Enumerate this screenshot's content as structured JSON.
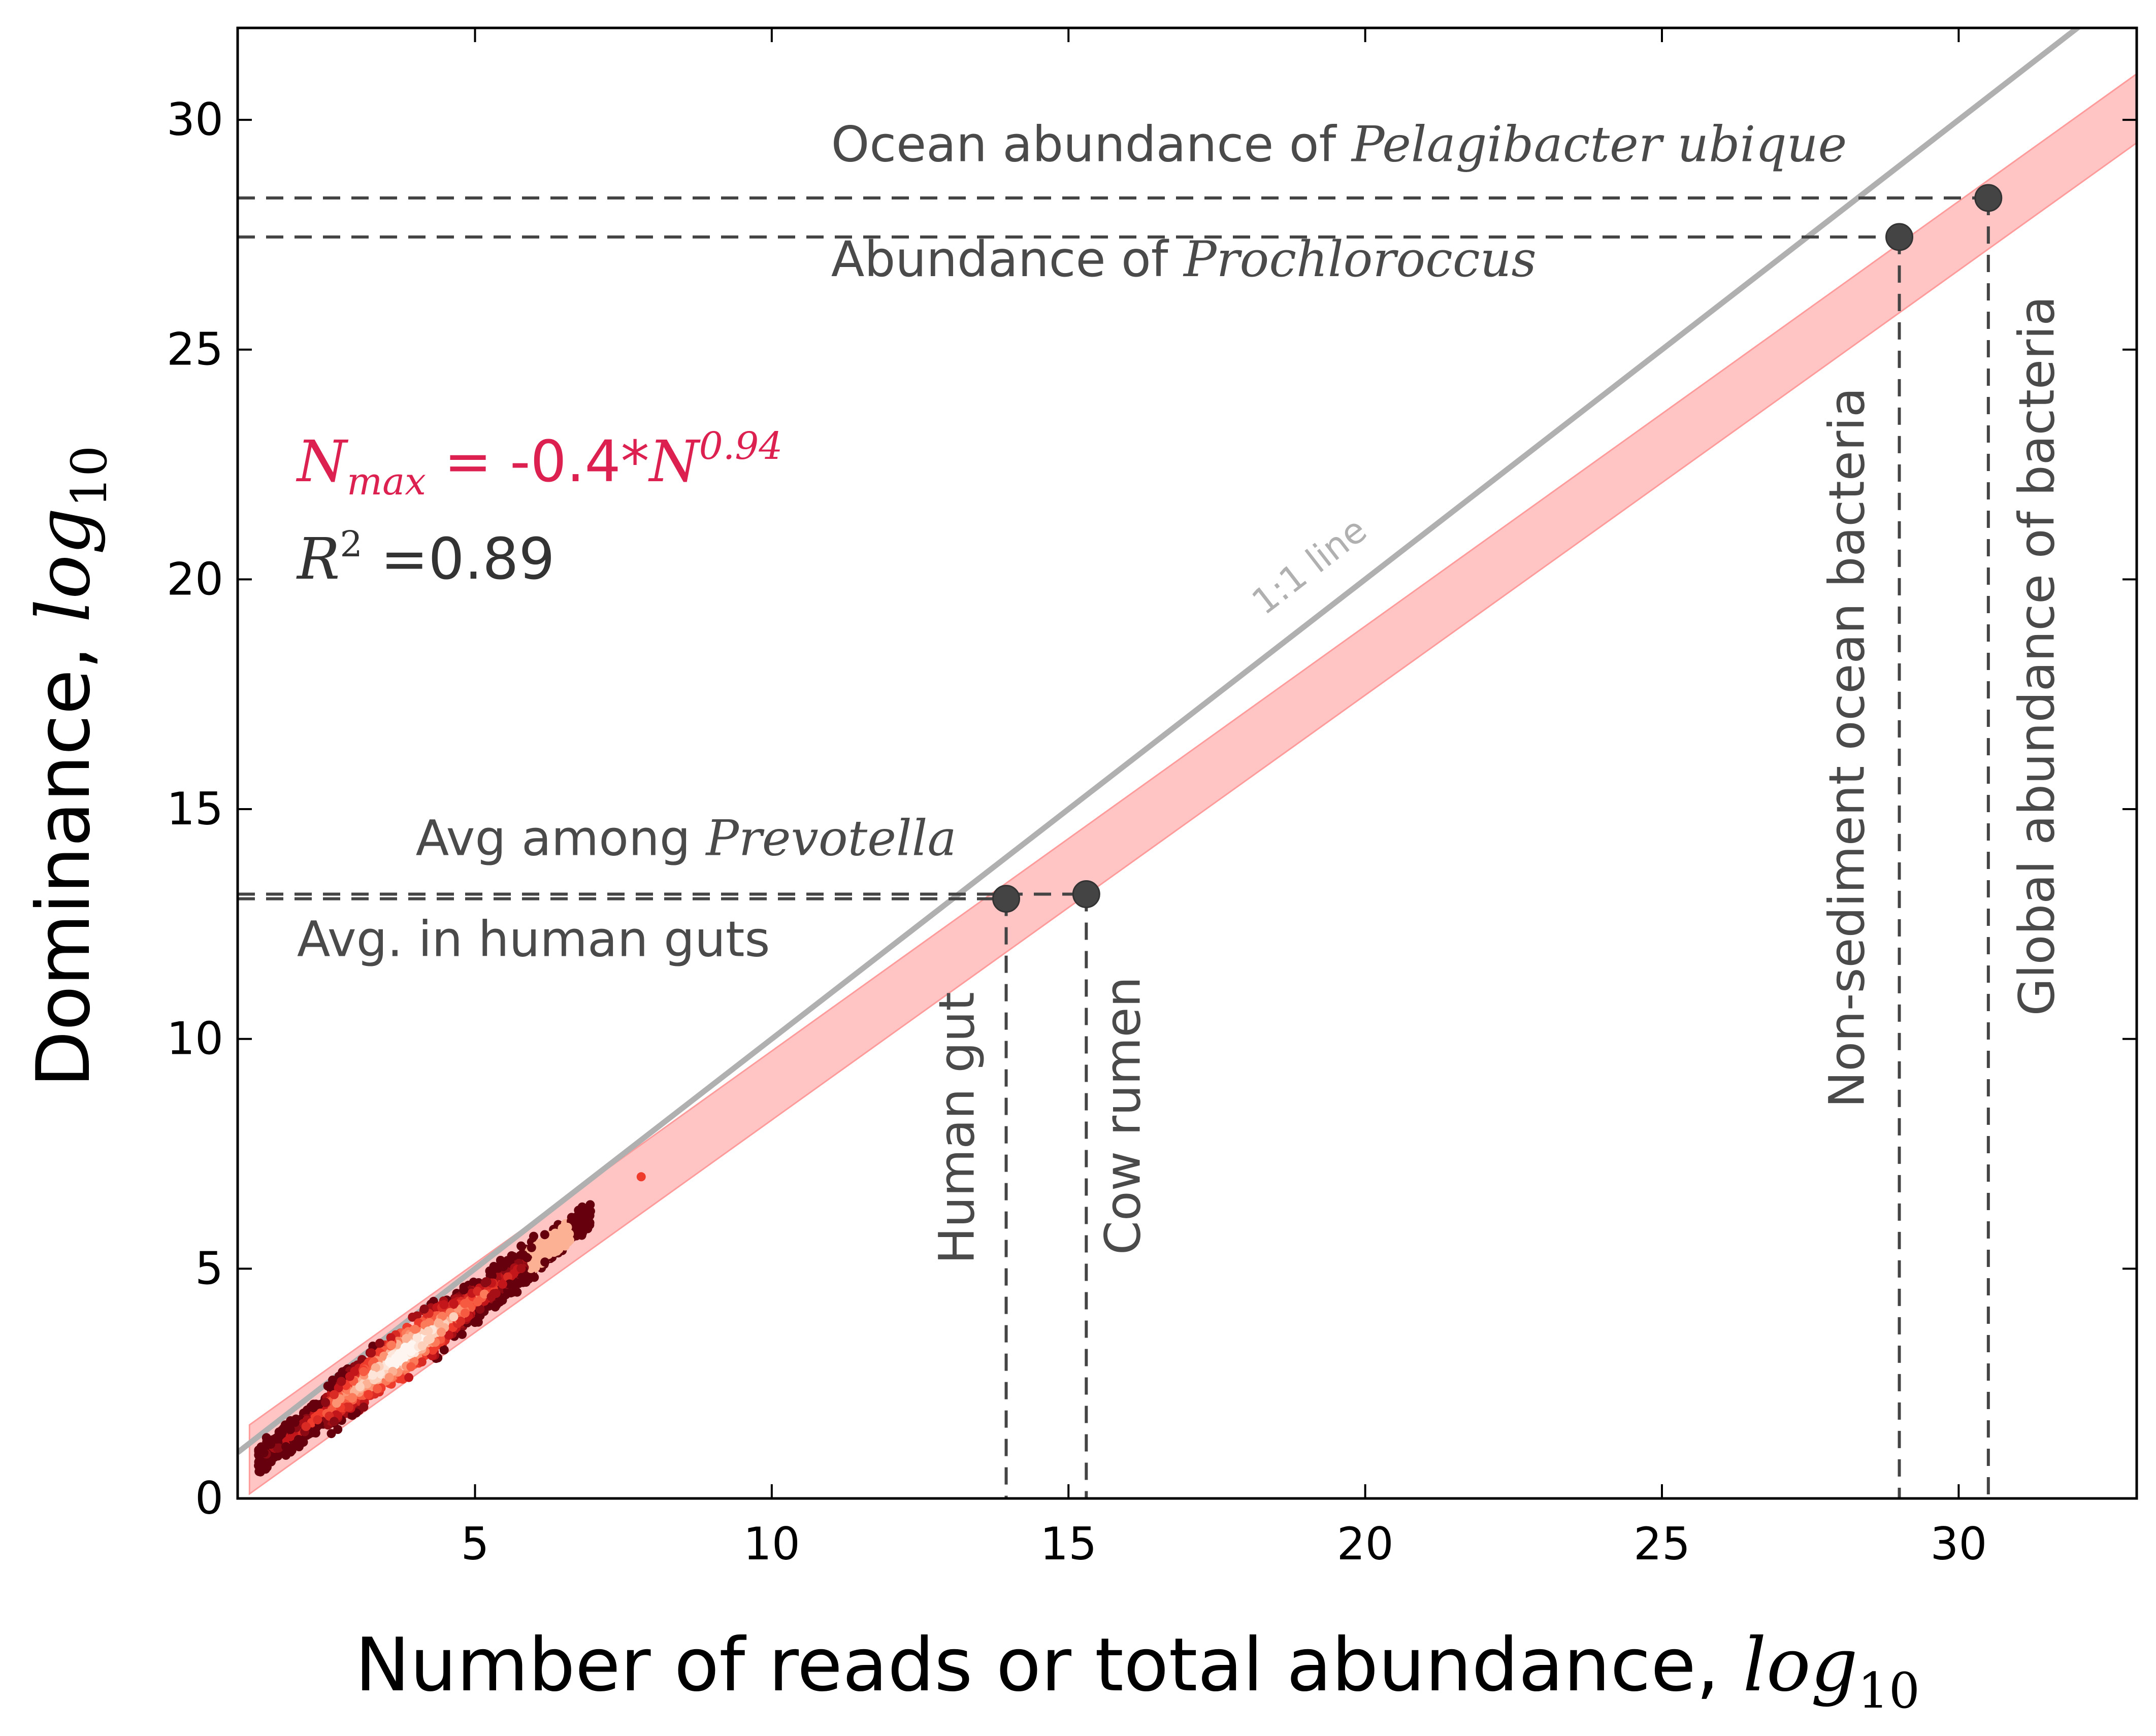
{
  "chart_data": {
    "type": "scatter",
    "xlabel": "Number of reads or total abundance, ",
    "xlabel_math": "log",
    "xlabel_sub": "10",
    "ylabel": "Dominance, ",
    "ylabel_math": "log",
    "ylabel_sub": "10",
    "xlim": [
      1,
      33
    ],
    "ylim": [
      0,
      32
    ],
    "xticks": [
      "5",
      "10",
      "15",
      "20",
      "25",
      "30"
    ],
    "xtick_values": [
      5,
      10,
      15,
      20,
      25,
      30
    ],
    "yticks": [
      "0",
      "5",
      "10",
      "15",
      "20",
      "25",
      "30"
    ],
    "ytick_values": [
      0,
      5,
      10,
      15,
      20,
      25,
      30
    ],
    "grid": false,
    "colors": {
      "one_to_one": "#b0b0b0",
      "band": "#ffc4c4",
      "band_edge": "#ff9b9b",
      "equation": "#dc2050",
      "point": "#444444",
      "annotation": "#4a4a4a",
      "ref_line": "#444444"
    },
    "one_to_one_line": {
      "label": "1:1 line",
      "x": [
        1,
        33
      ],
      "y": [
        1,
        33
      ]
    },
    "fit": {
      "equation_prefix": "N",
      "equation_sub": "max",
      "equation_body": " = -0.4*",
      "equation_var": "N",
      "equation_exp": "0.94",
      "r2_var": "R",
      "r2_exp": "2",
      "r2_value": " =0.89",
      "band_upper": [
        [
          1.2,
          1.6
        ],
        [
          33,
          31.0
        ]
      ],
      "band_lower": [
        [
          1.2,
          0.1
        ],
        [
          33,
          29.5
        ]
      ]
    },
    "points": [
      {
        "name": "Human gut",
        "x": 13.95,
        "y": 13.05
      },
      {
        "name": "Cow rumen",
        "x": 15.3,
        "y": 13.15
      },
      {
        "name": "Non-sediment ocean bacteria",
        "x": 29.0,
        "y": 27.45
      },
      {
        "name": "Global abundance of bacteria",
        "x": 30.5,
        "y": 28.3
      }
    ],
    "horizontal_refs": [
      {
        "label": "Ocean abundance of ",
        "italic": "Pelagibacter ubique",
        "y": 28.3,
        "x_end": 30.5,
        "text_x": 11.0,
        "text_y": 29.1
      },
      {
        "label": "Abundance of ",
        "italic": "Prochloroccus",
        "y": 27.45,
        "x_end": 29.0,
        "text_x": 11.0,
        "text_y": 26.6
      },
      {
        "label": "Avg among ",
        "italic": "Prevotella",
        "y": 13.15,
        "x_end": 15.3,
        "text_x": 4.0,
        "text_y": 14.0
      },
      {
        "label": "Avg. in human guts",
        "italic": "",
        "y": 13.05,
        "x_end": 13.95,
        "text_x": 2.0,
        "text_y": 11.8
      }
    ],
    "vertical_labels": [
      {
        "label": "Human gut",
        "x": 13.95,
        "y_top": 13.05,
        "text_x": 13.4,
        "text_y": 5.1
      },
      {
        "label": "Cow rumen",
        "x": 15.3,
        "y_top": 13.15,
        "text_x": 16.2,
        "text_y": 5.3
      },
      {
        "label": "Non-sediment ocean bacteria",
        "x": 29.0,
        "y_top": 27.45,
        "text_x": 28.4,
        "text_y": 8.5
      },
      {
        "label": "Global abundance of bacteria",
        "x": 30.5,
        "y_top": 28.3,
        "text_x": 31.6,
        "text_y": 10.5
      }
    ],
    "density_cloud": {
      "x_range": [
        1.3,
        7.8
      ],
      "y_range": [
        0.5,
        7.0
      ],
      "colormap": "Reds"
    }
  }
}
